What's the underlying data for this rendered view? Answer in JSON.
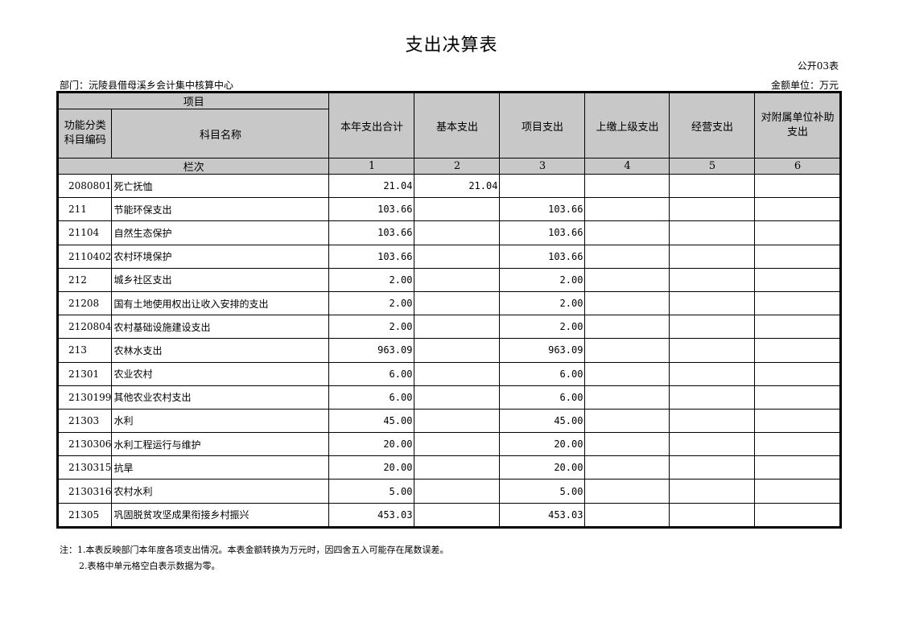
{
  "title": "支出决算表",
  "form_no": "公开03表",
  "department": "部门：沅陵县借母溪乡会计集中核算中心",
  "unit": "金额单位：万元",
  "header": {
    "item": "项目",
    "code": "功能分类科目编码",
    "name": "科目名称",
    "columns": [
      "本年支出合计",
      "基本支出",
      "项目支出",
      "上缴上级支出",
      "经营支出",
      "对附属单位补助支出"
    ],
    "row_index_label": "栏次",
    "column_numbers": [
      "1",
      "2",
      "3",
      "4",
      "5",
      "6"
    ]
  },
  "rows": [
    {
      "code": "2080801",
      "name": "死亡抚恤",
      "values": [
        "21.04",
        "21.04",
        "",
        "",
        "",
        ""
      ]
    },
    {
      "code": "211",
      "name": "节能环保支出",
      "values": [
        "103.66",
        "",
        "103.66",
        "",
        "",
        ""
      ]
    },
    {
      "code": "21104",
      "name": "自然生态保护",
      "values": [
        "103.66",
        "",
        "103.66",
        "",
        "",
        ""
      ]
    },
    {
      "code": "2110402",
      "name": "农村环境保护",
      "values": [
        "103.66",
        "",
        "103.66",
        "",
        "",
        ""
      ]
    },
    {
      "code": "212",
      "name": "城乡社区支出",
      "values": [
        "2.00",
        "",
        "2.00",
        "",
        "",
        ""
      ]
    },
    {
      "code": "21208",
      "name": "国有土地使用权出让收入安排的支出",
      "values": [
        "2.00",
        "",
        "2.00",
        "",
        "",
        ""
      ]
    },
    {
      "code": "2120804",
      "name": "农村基础设施建设支出",
      "values": [
        "2.00",
        "",
        "2.00",
        "",
        "",
        ""
      ]
    },
    {
      "code": "213",
      "name": "农林水支出",
      "values": [
        "963.09",
        "",
        "963.09",
        "",
        "",
        ""
      ]
    },
    {
      "code": "21301",
      "name": "农业农村",
      "values": [
        "6.00",
        "",
        "6.00",
        "",
        "",
        ""
      ]
    },
    {
      "code": "2130199",
      "name": "其他农业农村支出",
      "values": [
        "6.00",
        "",
        "6.00",
        "",
        "",
        ""
      ]
    },
    {
      "code": "21303",
      "name": "水利",
      "values": [
        "45.00",
        "",
        "45.00",
        "",
        "",
        ""
      ]
    },
    {
      "code": "2130306",
      "name": "水利工程运行与维护",
      "values": [
        "20.00",
        "",
        "20.00",
        "",
        "",
        ""
      ]
    },
    {
      "code": "2130315",
      "name": "抗旱",
      "values": [
        "20.00",
        "",
        "20.00",
        "",
        "",
        ""
      ]
    },
    {
      "code": "2130316",
      "name": "农村水利",
      "values": [
        "5.00",
        "",
        "5.00",
        "",
        "",
        ""
      ]
    },
    {
      "code": "21305",
      "name": "巩固脱贫攻坚成果衔接乡村振兴",
      "values": [
        "453.03",
        "",
        "453.03",
        "",
        "",
        ""
      ]
    }
  ],
  "notes": [
    "注：1.本表反映部门本年度各项支出情况。本表金额转换为万元时，因四舍五入可能存在尾数误差。",
    "2.表格中单元格空白表示数据为零。"
  ]
}
